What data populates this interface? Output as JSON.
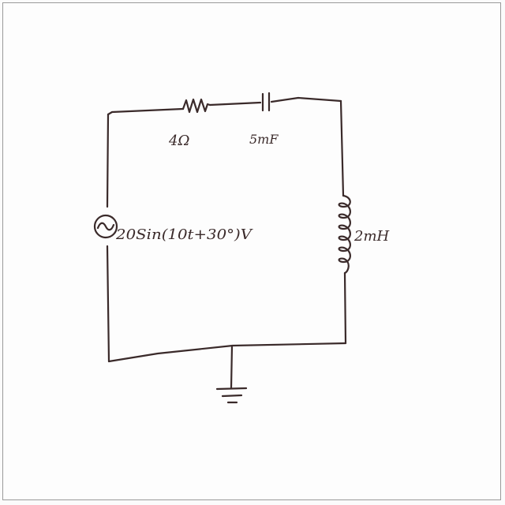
{
  "components": {
    "resistor": {
      "label": "4Ω"
    },
    "capacitor": {
      "label": "5mF"
    },
    "inductor": {
      "label": "2mH"
    },
    "source": {
      "label": "20Sin(10t+30°)V"
    }
  },
  "ground": {
    "present": true
  }
}
